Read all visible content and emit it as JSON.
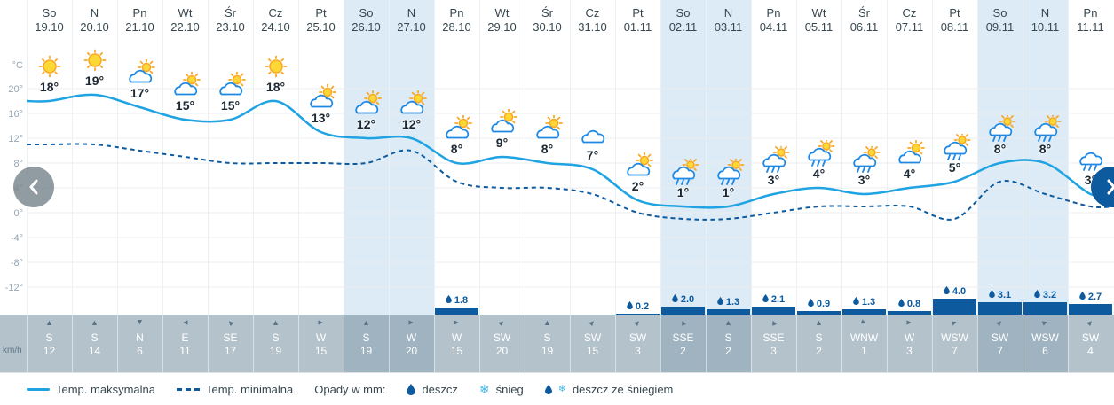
{
  "axis": {
    "unit_label": "°C",
    "wind_unit_label": "km/h",
    "ticks": [
      "20°",
      "16°",
      "12°",
      "8°",
      "4°",
      "0°",
      "-4°",
      "-8°",
      "-12°"
    ],
    "tick_values": [
      20,
      16,
      12,
      8,
      4,
      0,
      -4,
      -8,
      -12
    ]
  },
  "columns": [
    {
      "day": "So",
      "date": "19.10",
      "temp": "18°",
      "temp_value": 18,
      "icon": "sun",
      "precip": null,
      "wind_dir": "S",
      "wind_speed": "12",
      "weekend": false
    },
    {
      "day": "N",
      "date": "20.10",
      "temp": "19°",
      "temp_value": 19,
      "icon": "sun",
      "precip": null,
      "wind_dir": "S",
      "wind_speed": "14",
      "weekend": false
    },
    {
      "day": "Pn",
      "date": "21.10",
      "temp": "17°",
      "temp_value": 17,
      "icon": "partly",
      "precip": null,
      "wind_dir": "N",
      "wind_speed": "6",
      "weekend": false
    },
    {
      "day": "Wt",
      "date": "22.10",
      "temp": "15°",
      "temp_value": 15,
      "icon": "partly",
      "precip": null,
      "wind_dir": "E",
      "wind_speed": "11",
      "weekend": false
    },
    {
      "day": "Śr",
      "date": "23.10",
      "temp": "15°",
      "temp_value": 15,
      "icon": "partly",
      "precip": null,
      "wind_dir": "SE",
      "wind_speed": "17",
      "weekend": false
    },
    {
      "day": "Cz",
      "date": "24.10",
      "temp": "18°",
      "temp_value": 18,
      "icon": "sun",
      "precip": null,
      "wind_dir": "S",
      "wind_speed": "19",
      "weekend": false
    },
    {
      "day": "Pt",
      "date": "25.10",
      "temp": "13°",
      "temp_value": 13,
      "icon": "partly",
      "precip": null,
      "wind_dir": "W",
      "wind_speed": "15",
      "weekend": false
    },
    {
      "day": "So",
      "date": "26.10",
      "temp": "12°",
      "temp_value": 12,
      "icon": "partly",
      "precip": null,
      "wind_dir": "S",
      "wind_speed": "19",
      "weekend": true
    },
    {
      "day": "N",
      "date": "27.10",
      "temp": "12°",
      "temp_value": 12,
      "icon": "partly",
      "precip": null,
      "wind_dir": "W",
      "wind_speed": "20",
      "weekend": true
    },
    {
      "day": "Pn",
      "date": "28.10",
      "temp": "8°",
      "temp_value": 8,
      "icon": "partly",
      "precip": "1.8",
      "wind_dir": "W",
      "wind_speed": "15",
      "weekend": false
    },
    {
      "day": "Wt",
      "date": "29.10",
      "temp": "9°",
      "temp_value": 9,
      "icon": "partly",
      "precip": null,
      "wind_dir": "SW",
      "wind_speed": "20",
      "weekend": false
    },
    {
      "day": "Śr",
      "date": "30.10",
      "temp": "8°",
      "temp_value": 8,
      "icon": "partly",
      "precip": null,
      "wind_dir": "S",
      "wind_speed": "19",
      "weekend": false
    },
    {
      "day": "Cz",
      "date": "31.10",
      "temp": "7°",
      "temp_value": 7,
      "icon": "cloud",
      "precip": null,
      "wind_dir": "SW",
      "wind_speed": "15",
      "weekend": false
    },
    {
      "day": "Pt",
      "date": "01.11",
      "temp": "2°",
      "temp_value": 2,
      "icon": "partly",
      "precip": "0.2",
      "wind_dir": "SW",
      "wind_speed": "3",
      "weekend": false
    },
    {
      "day": "So",
      "date": "02.11",
      "temp": "1°",
      "temp_value": 1,
      "icon": "rain-sun",
      "precip": "2.0",
      "wind_dir": "SSE",
      "wind_speed": "2",
      "weekend": true
    },
    {
      "day": "N",
      "date": "03.11",
      "temp": "1°",
      "temp_value": 1,
      "icon": "rain-sun",
      "precip": "1.3",
      "wind_dir": "S",
      "wind_speed": "2",
      "weekend": true
    },
    {
      "day": "Pn",
      "date": "04.11",
      "temp": "3°",
      "temp_value": 3,
      "icon": "rain-sun",
      "precip": "2.1",
      "wind_dir": "SSE",
      "wind_speed": "3",
      "weekend": false
    },
    {
      "day": "Wt",
      "date": "05.11",
      "temp": "4°",
      "temp_value": 4,
      "icon": "rain-sun",
      "precip": "0.9",
      "wind_dir": "S",
      "wind_speed": "2",
      "weekend": false
    },
    {
      "day": "Śr",
      "date": "06.11",
      "temp": "3°",
      "temp_value": 3,
      "icon": "rain-sun",
      "precip": "1.3",
      "wind_dir": "WNW",
      "wind_speed": "1",
      "weekend": false
    },
    {
      "day": "Cz",
      "date": "07.11",
      "temp": "4°",
      "temp_value": 4,
      "icon": "partly",
      "precip": "0.8",
      "wind_dir": "W",
      "wind_speed": "3",
      "weekend": false
    },
    {
      "day": "Pt",
      "date": "08.11",
      "temp": "5°",
      "temp_value": 5,
      "icon": "rain-sun",
      "precip": "4.0",
      "wind_dir": "WSW",
      "wind_speed": "7",
      "weekend": false
    },
    {
      "day": "So",
      "date": "09.11",
      "temp": "8°",
      "temp_value": 8,
      "icon": "rain-sun",
      "precip": "3.1",
      "wind_dir": "SW",
      "wind_speed": "7",
      "weekend": true
    },
    {
      "day": "N",
      "date": "10.11",
      "temp": "8°",
      "temp_value": 8,
      "icon": "rain-sun",
      "precip": "3.2",
      "wind_dir": "WSW",
      "wind_speed": "6",
      "weekend": true
    },
    {
      "day": "Pn",
      "date": "11.11",
      "temp": "3°",
      "temp_value": 3,
      "icon": "rain",
      "precip": "2.7",
      "wind_dir": "SW",
      "wind_speed": "4",
      "weekend": false
    }
  ],
  "chart_data": {
    "type": "line",
    "categories": [
      "19.10",
      "20.10",
      "21.10",
      "22.10",
      "23.10",
      "24.10",
      "25.10",
      "26.10",
      "27.10",
      "28.10",
      "29.10",
      "30.10",
      "31.10",
      "01.11",
      "02.11",
      "03.11",
      "04.11",
      "05.11",
      "06.11",
      "07.11",
      "08.11",
      "09.11",
      "10.11",
      "11.11"
    ],
    "day_names": [
      "So",
      "N",
      "Pn",
      "Wt",
      "Śr",
      "Cz",
      "Pt",
      "So",
      "N",
      "Pn",
      "Wt",
      "Śr",
      "Cz",
      "Pt",
      "So",
      "N",
      "Pn",
      "Wt",
      "Śr",
      "Cz",
      "Pt",
      "So",
      "N",
      "Pn"
    ],
    "series": [
      {
        "name": "Temp. maksymalna",
        "unit": "°C",
        "values": [
          18,
          19,
          17,
          15,
          15,
          18,
          13,
          12,
          12,
          8,
          9,
          8,
          7,
          2,
          1,
          1,
          3,
          4,
          3,
          4,
          5,
          8,
          8,
          3
        ]
      },
      {
        "name": "Temp. minimalna",
        "unit": "°C",
        "values": [
          11,
          11,
          10,
          9,
          8,
          8,
          8,
          8,
          10,
          5,
          4,
          4,
          3,
          0,
          -1,
          -1,
          0,
          1,
          1,
          1,
          -1,
          5,
          3,
          1
        ]
      }
    ],
    "precipitation_mm": [
      0,
      0,
      0,
      0,
      0,
      0,
      0,
      0,
      0,
      1.8,
      0,
      0,
      0,
      0.2,
      2.0,
      1.3,
      2.1,
      0.9,
      1.3,
      0.8,
      4.0,
      3.1,
      3.2,
      2.7
    ],
    "wind": [
      {
        "dir": "S",
        "kmh": 12
      },
      {
        "dir": "S",
        "kmh": 14
      },
      {
        "dir": "N",
        "kmh": 6
      },
      {
        "dir": "E",
        "kmh": 11
      },
      {
        "dir": "SE",
        "kmh": 17
      },
      {
        "dir": "S",
        "kmh": 19
      },
      {
        "dir": "W",
        "kmh": 15
      },
      {
        "dir": "S",
        "kmh": 19
      },
      {
        "dir": "W",
        "kmh": 20
      },
      {
        "dir": "W",
        "kmh": 15
      },
      {
        "dir": "SW",
        "kmh": 20
      },
      {
        "dir": "S",
        "kmh": 19
      },
      {
        "dir": "SW",
        "kmh": 15
      },
      {
        "dir": "SW",
        "kmh": 3
      },
      {
        "dir": "SSE",
        "kmh": 2
      },
      {
        "dir": "S",
        "kmh": 2
      },
      {
        "dir": "SSE",
        "kmh": 3
      },
      {
        "dir": "S",
        "kmh": 2
      },
      {
        "dir": "WNW",
        "kmh": 1
      },
      {
        "dir": "W",
        "kmh": 3
      },
      {
        "dir": "WSW",
        "kmh": 7
      },
      {
        "dir": "SW",
        "kmh": 7
      },
      {
        "dir": "WSW",
        "kmh": 6
      },
      {
        "dir": "SW",
        "kmh": 4
      }
    ],
    "ylabel": "°C",
    "ylim": [
      -14,
      22
    ],
    "yticks": [
      20,
      16,
      12,
      8,
      4,
      0,
      -4,
      -8,
      -12
    ],
    "grid": true,
    "legend_position": "bottom"
  },
  "legend": {
    "max_label": "Temp. maksymalna",
    "min_label": "Temp. minimalna",
    "precip_label": "Opady w mm:",
    "rain_label": "deszcz",
    "snow_label": "śnieg",
    "rain_snow_label": "deszcz ze śniegiem"
  },
  "icons": {
    "snowflake_glyph": "❄",
    "wind_arrow_glyph": "▲"
  },
  "colors": {
    "max_line": "#1fa3e2",
    "min_line": "#0d5a9e",
    "precip_bar": "#0d5a9e",
    "weekend_band": "#dcebf6",
    "wind_strip": "#b4c2cc",
    "wind_strip_weekend": "#9fb3c1",
    "grid_line": "#ebeef0",
    "axis_text": "#98a6b3",
    "snowflake": "#45b5e8"
  }
}
